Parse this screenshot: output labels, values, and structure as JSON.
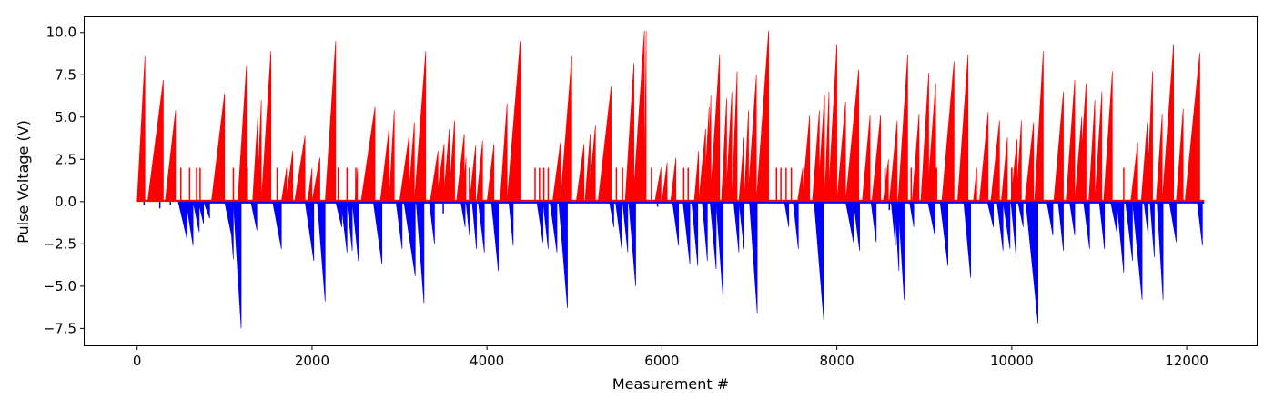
{
  "chart_data": {
    "type": "bar",
    "title": "",
    "xlabel": "Measurement #",
    "ylabel": "Pulse Voltage (V)",
    "xlim": [
      -600,
      12800
    ],
    "ylim": [
      -8.5,
      10.9
    ],
    "x_ticks": [
      0,
      2000,
      4000,
      6000,
      8000,
      10000,
      12000
    ],
    "x_tick_labels": [
      "0",
      "2000",
      "4000",
      "6000",
      "8000",
      "10000",
      "12000"
    ],
    "y_ticks": [
      -7.5,
      -5.0,
      -2.5,
      0.0,
      2.5,
      5.0,
      7.5,
      10.0
    ],
    "y_tick_labels": [
      "−7.5",
      "−5.0",
      "−2.5",
      "0.0",
      "2.5",
      "5.0",
      "7.5",
      "10.0"
    ],
    "grid": false,
    "series": [
      {
        "color": "#ff0000",
        "ramps": [
          [
            0,
            90,
            8.6
          ],
          [
            120,
            300,
            7.2
          ],
          [
            320,
            440,
            5.4
          ],
          [
            850,
            1000,
            6.4
          ],
          [
            1150,
            1250,
            8.0
          ],
          [
            1320,
            1380,
            5.0
          ],
          [
            1370,
            1420,
            6.0
          ],
          [
            1420,
            1530,
            8.9
          ],
          [
            1650,
            1710,
            2.0
          ],
          [
            1700,
            1780,
            3.0
          ],
          [
            1800,
            1920,
            3.9
          ],
          [
            1950,
            2000,
            2.0
          ],
          [
            2000,
            2090,
            2.6
          ],
          [
            2150,
            2270,
            9.5
          ],
          [
            2490,
            2520,
            2.0
          ],
          [
            2560,
            2720,
            5.6
          ],
          [
            2780,
            2880,
            4.3
          ],
          [
            2880,
            2940,
            5.4
          ],
          [
            3000,
            3110,
            3.9
          ],
          [
            3100,
            3170,
            4.7
          ],
          [
            3170,
            3300,
            8.9
          ],
          [
            3350,
            3440,
            3.0
          ],
          [
            3420,
            3510,
            3.4
          ],
          [
            3500,
            3570,
            4.3
          ],
          [
            3560,
            3630,
            4.8
          ],
          [
            3650,
            3740,
            4.0
          ],
          [
            3720,
            3760,
            2.6
          ],
          [
            3800,
            3870,
            3.3
          ],
          [
            3880,
            3950,
            3.6
          ],
          [
            4000,
            4080,
            3.4
          ],
          [
            4150,
            4230,
            5.8
          ],
          [
            4230,
            4380,
            9.5
          ],
          [
            4750,
            4840,
            3.5
          ],
          [
            4840,
            4970,
            8.6
          ],
          [
            5020,
            5110,
            3.4
          ],
          [
            5120,
            5180,
            4.0
          ],
          [
            5160,
            5240,
            4.5
          ],
          [
            5270,
            5420,
            6.8
          ],
          [
            5580,
            5680,
            8.2
          ],
          [
            5670,
            5800,
            10.1
          ],
          [
            5800,
            5820,
            10.1
          ],
          [
            5920,
            5990,
            2.0
          ],
          [
            6000,
            6060,
            2.3
          ],
          [
            6100,
            6160,
            2.6
          ],
          [
            6370,
            6420,
            3.0
          ],
          [
            6420,
            6500,
            4.3
          ],
          [
            6480,
            6540,
            5.6
          ],
          [
            6520,
            6560,
            6.3
          ],
          [
            6550,
            6660,
            8.7
          ],
          [
            6680,
            6740,
            6.1
          ],
          [
            6730,
            6800,
            6.5
          ],
          [
            6800,
            6860,
            7.7
          ],
          [
            6880,
            6940,
            3.8
          ],
          [
            6940,
            6990,
            5.4
          ],
          [
            6980,
            7080,
            7.5
          ],
          [
            7080,
            7220,
            10.1
          ],
          [
            7550,
            7610,
            2.0
          ],
          [
            7600,
            7690,
            5.1
          ],
          [
            7720,
            7800,
            5.4
          ],
          [
            7780,
            7860,
            6.3
          ],
          [
            7860,
            7910,
            6.5
          ],
          [
            7900,
            8000,
            9.3
          ],
          [
            8000,
            8100,
            5.9
          ],
          [
            8100,
            8250,
            7.8
          ],
          [
            8290,
            8380,
            5.1
          ],
          [
            8400,
            8500,
            5.1
          ],
          [
            8530,
            8590,
            2.5
          ],
          [
            8600,
            8690,
            4.8
          ],
          [
            8700,
            8810,
            8.7
          ],
          [
            8860,
            8940,
            5.2
          ],
          [
            8960,
            9050,
            7.6
          ],
          [
            9030,
            9130,
            7.0
          ],
          [
            9200,
            9340,
            8.3
          ],
          [
            9380,
            9500,
            8.7
          ],
          [
            9560,
            9600,
            2.0
          ],
          [
            9630,
            9730,
            5.3
          ],
          [
            9760,
            9860,
            4.8
          ],
          [
            9880,
            9950,
            3.8
          ],
          [
            9990,
            10060,
            3.7
          ],
          [
            10050,
            10110,
            4.8
          ],
          [
            10150,
            10250,
            4.7
          ],
          [
            10260,
            10360,
            8.9
          ],
          [
            10480,
            10590,
            6.5
          ],
          [
            10620,
            10720,
            7.2
          ],
          [
            10720,
            10800,
            5.0
          ],
          [
            10760,
            10850,
            7.0
          ],
          [
            10880,
            10950,
            6.0
          ],
          [
            10950,
            11030,
            6.5
          ],
          [
            11050,
            11150,
            7.7
          ],
          [
            11360,
            11440,
            3.5
          ],
          [
            11480,
            11550,
            4.7
          ],
          [
            11540,
            11610,
            7.7
          ],
          [
            11650,
            11720,
            5.2
          ],
          [
            11720,
            11850,
            9.3
          ],
          [
            11880,
            11960,
            5.5
          ],
          [
            11980,
            12150,
            8.8
          ]
        ],
        "spikes": [
          [
            500,
            2.0
          ],
          [
            600,
            2.0
          ],
          [
            680,
            2.0
          ],
          [
            720,
            2.0
          ],
          [
            1100,
            2.0
          ],
          [
            1250,
            2.0
          ],
          [
            1600,
            2.0
          ],
          [
            2300,
            2.0
          ],
          [
            2400,
            2.0
          ],
          [
            2500,
            2.0
          ],
          [
            3500,
            2.0
          ],
          [
            3600,
            2.0
          ],
          [
            3800,
            2.0
          ],
          [
            3850,
            2.0
          ],
          [
            4550,
            2.0
          ],
          [
            4600,
            2.0
          ],
          [
            4650,
            2.0
          ],
          [
            4700,
            2.0
          ],
          [
            5480,
            2.0
          ],
          [
            5550,
            2.0
          ],
          [
            5720,
            2.0
          ],
          [
            5880,
            2.0
          ],
          [
            6250,
            2.0
          ],
          [
            6300,
            2.0
          ],
          [
            7310,
            2.0
          ],
          [
            7360,
            2.0
          ],
          [
            7420,
            2.0
          ],
          [
            7480,
            2.0
          ],
          [
            7760,
            2.0
          ],
          [
            8350,
            2.0
          ],
          [
            8550,
            2.0
          ],
          [
            8850,
            2.0
          ],
          [
            9140,
            2.0
          ],
          [
            10000,
            2.0
          ],
          [
            10000,
            2.0
          ],
          [
            11080,
            2.0
          ],
          [
            11280,
            2.0
          ]
        ]
      },
      {
        "color": "#0000ff",
        "ramps": [
          [
            470,
            570,
            -2.2
          ],
          [
            560,
            640,
            -2.6
          ],
          [
            640,
            710,
            -1.8
          ],
          [
            700,
            760,
            -1.3
          ],
          [
            760,
            830,
            -1.0
          ],
          [
            1000,
            1080,
            -2.0
          ],
          [
            1050,
            1100,
            -3.4
          ],
          [
            1100,
            1190,
            -7.5
          ],
          [
            1300,
            1370,
            -1.7
          ],
          [
            1550,
            1650,
            -2.8
          ],
          [
            1920,
            2020,
            -3.5
          ],
          [
            2060,
            2150,
            -5.9
          ],
          [
            2270,
            2340,
            -1.5
          ],
          [
            2330,
            2400,
            -3.0
          ],
          [
            2400,
            2460,
            -2.9
          ],
          [
            2460,
            2530,
            -3.5
          ],
          [
            2700,
            2800,
            -3.7
          ],
          [
            2960,
            3030,
            -2.8
          ],
          [
            3050,
            3180,
            -4.4
          ],
          [
            3190,
            3280,
            -6.0
          ],
          [
            3340,
            3400,
            -2.5
          ],
          [
            3700,
            3750,
            -1.5
          ],
          [
            3760,
            3800,
            -2.0
          ],
          [
            3830,
            3880,
            -2.8
          ],
          [
            3900,
            3970,
            -3.0
          ],
          [
            4050,
            4130,
            -4.1
          ],
          [
            4250,
            4300,
            -2.6
          ],
          [
            4570,
            4640,
            -2.4
          ],
          [
            4640,
            4700,
            -2.8
          ],
          [
            4720,
            4800,
            -3.0
          ],
          [
            4820,
            4920,
            -6.3
          ],
          [
            5400,
            5450,
            -1.5
          ],
          [
            5470,
            5540,
            -2.8
          ],
          [
            5550,
            5610,
            -3.0
          ],
          [
            5620,
            5700,
            -5.0
          ],
          [
            6120,
            6190,
            -2.6
          ],
          [
            6240,
            6320,
            -3.7
          ],
          [
            6340,
            6410,
            -3.8
          ],
          [
            6460,
            6520,
            -3.5
          ],
          [
            6550,
            6620,
            -4.0
          ],
          [
            6620,
            6700,
            -5.8
          ],
          [
            6820,
            6880,
            -3.0
          ],
          [
            6880,
            6940,
            -2.8
          ],
          [
            7000,
            7090,
            -6.6
          ],
          [
            7400,
            7450,
            -1.5
          ],
          [
            7500,
            7560,
            -2.8
          ],
          [
            7740,
            7850,
            -7.0
          ],
          [
            8100,
            8190,
            -2.4
          ],
          [
            8190,
            8260,
            -2.9
          ],
          [
            8390,
            8450,
            -2.4
          ],
          [
            8620,
            8670,
            -2.6
          ],
          [
            8660,
            8710,
            -4.1
          ],
          [
            8700,
            8770,
            -5.8
          ],
          [
            8830,
            8880,
            -1.5
          ],
          [
            9040,
            9120,
            -2.0
          ],
          [
            9180,
            9270,
            -3.8
          ],
          [
            9450,
            9530,
            -4.5
          ],
          [
            9720,
            9790,
            -1.5
          ],
          [
            9830,
            9900,
            -2.9
          ],
          [
            9900,
            9980,
            -2.8
          ],
          [
            9990,
            10050,
            -3.3
          ],
          [
            10070,
            10130,
            -1.5
          ],
          [
            10160,
            10300,
            -7.2
          ],
          [
            10400,
            10470,
            -2.0
          ],
          [
            10530,
            10590,
            -2.9
          ],
          [
            10660,
            10720,
            -2.0
          ],
          [
            10820,
            10890,
            -2.8
          ],
          [
            11000,
            11060,
            -2.8
          ],
          [
            11130,
            11200,
            -1.8
          ],
          [
            11200,
            11280,
            -4.2
          ],
          [
            11300,
            11380,
            -3.5
          ],
          [
            11380,
            11490,
            -5.8
          ],
          [
            11510,
            11560,
            -2.0
          ],
          [
            11580,
            11630,
            -3.3
          ],
          [
            11660,
            11730,
            -5.8
          ],
          [
            11800,
            11880,
            -2.4
          ],
          [
            12120,
            12180,
            -2.6
          ]
        ],
        "spikes": [
          [
            80,
            -0.2
          ],
          [
            260,
            -0.4
          ],
          [
            380,
            -0.2
          ],
          [
            3500,
            -0.7
          ],
          [
            4850,
            -0.5
          ],
          [
            5950,
            -0.3
          ],
          [
            8200,
            -0.5
          ],
          [
            8600,
            -0.5
          ],
          [
            10000,
            -0.3
          ],
          [
            11200,
            -0.4
          ]
        ]
      }
    ]
  }
}
